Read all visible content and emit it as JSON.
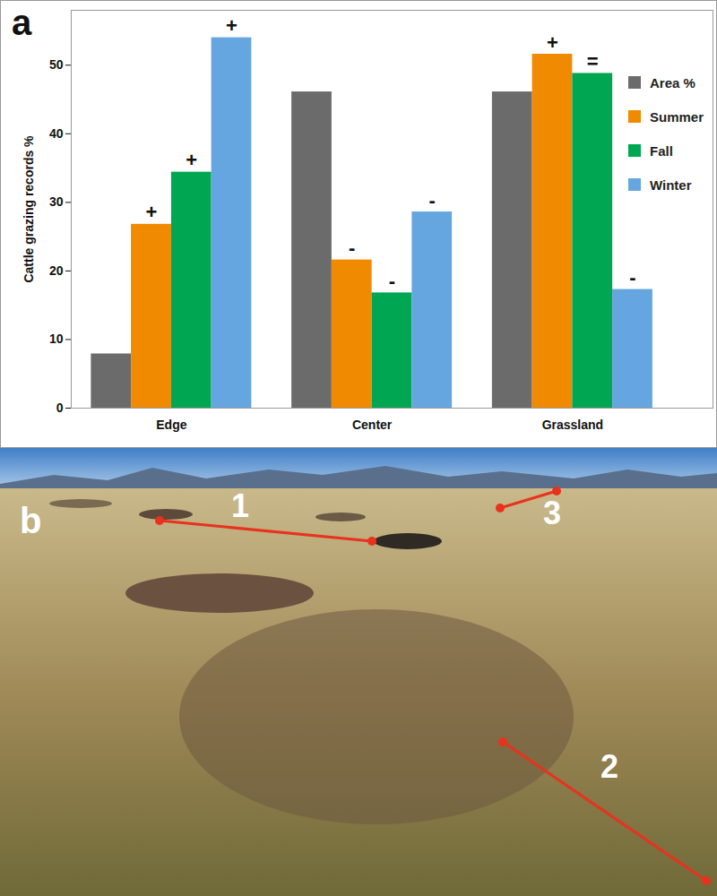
{
  "chart_data": {
    "type": "bar",
    "panel_label": "a",
    "y_label": "Cattle grazing records %",
    "categories": [
      "Edge",
      "Center",
      "Grassland"
    ],
    "series": [
      {
        "name": "Area %",
        "color": "#6b6b6b",
        "values": [
          7.9,
          46.1,
          46.1
        ]
      },
      {
        "name": "Summer",
        "color": "#f08a00",
        "values": [
          26.8,
          21.6,
          51.6
        ],
        "annotations": [
          "+",
          "-",
          "+"
        ]
      },
      {
        "name": "Fall",
        "color": "#00a651",
        "values": [
          34.4,
          16.8,
          48.8
        ],
        "annotations": [
          "+",
          "-",
          "="
        ]
      },
      {
        "name": "Winter",
        "color": "#66a6e0",
        "values": [
          54.0,
          28.6,
          17.3
        ],
        "annotations": [
          "+",
          "-",
          "-"
        ]
      }
    ],
    "ylim": [
      0,
      58
    ],
    "yticks": [
      0,
      10,
      20,
      30,
      40,
      50
    ],
    "legend": "top-right"
  },
  "image_panel": {
    "panel_label": "b",
    "line_labels": [
      "1",
      "2",
      "3"
    ]
  }
}
